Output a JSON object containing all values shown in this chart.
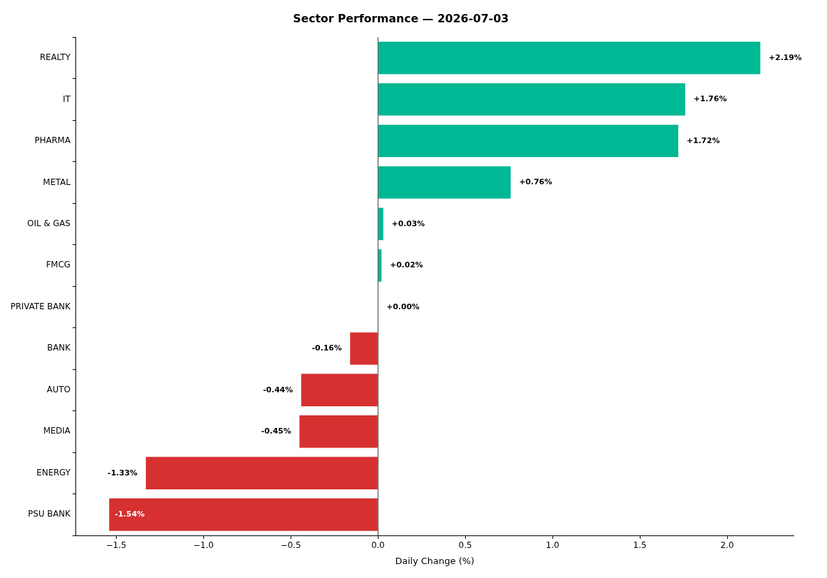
{
  "chart_data": {
    "type": "bar",
    "orientation": "horizontal",
    "title": "Sector Performance — 2026-07-03",
    "xlabel": "Daily Change (%)",
    "categories": [
      "REALTY",
      "IT",
      "PHARMA",
      "METAL",
      "OIL & GAS",
      "FMCG",
      "PRIVATE BANK",
      "BANK",
      "AUTO",
      "MEDIA",
      "ENERGY",
      "PSU BANK"
    ],
    "values": [
      2.19,
      1.76,
      1.72,
      0.76,
      0.03,
      0.02,
      0.0,
      -0.16,
      -0.44,
      -0.45,
      -1.33,
      -1.54
    ],
    "colors": [
      "#00b894",
      "#00b894",
      "#00b894",
      "#00b894",
      "#00b894",
      "#00b894",
      "#00b894",
      "#d63031",
      "#d63031",
      "#d63031",
      "#d63031",
      "#d63031"
    ],
    "value_labels": [
      "+2.19%",
      "+1.76%",
      "+1.72%",
      "+0.76%",
      "+0.03%",
      "+0.02%",
      "+0.00%",
      "-0.16%",
      "-0.44%",
      "-0.45%",
      "-1.33%",
      "-1.54%"
    ],
    "xlim": [
      -1.73,
      2.38
    ],
    "xticks": [
      {
        "value": -1.5,
        "label": "−1.5"
      },
      {
        "value": -1.0,
        "label": "−1.0"
      },
      {
        "value": -0.5,
        "label": "−0.5"
      },
      {
        "value": 0,
        "label": "0.0"
      },
      {
        "value": 0.5,
        "label": "0.5"
      },
      {
        "value": 1.0,
        "label": "1.0"
      },
      {
        "value": 1.5,
        "label": "1.5"
      },
      {
        "value": 2.0,
        "label": "2.0"
      }
    ],
    "ref_lines": [
      {
        "axis": "x",
        "value": 0,
        "color": "#333333"
      }
    ],
    "grid": false,
    "legend": false
  }
}
